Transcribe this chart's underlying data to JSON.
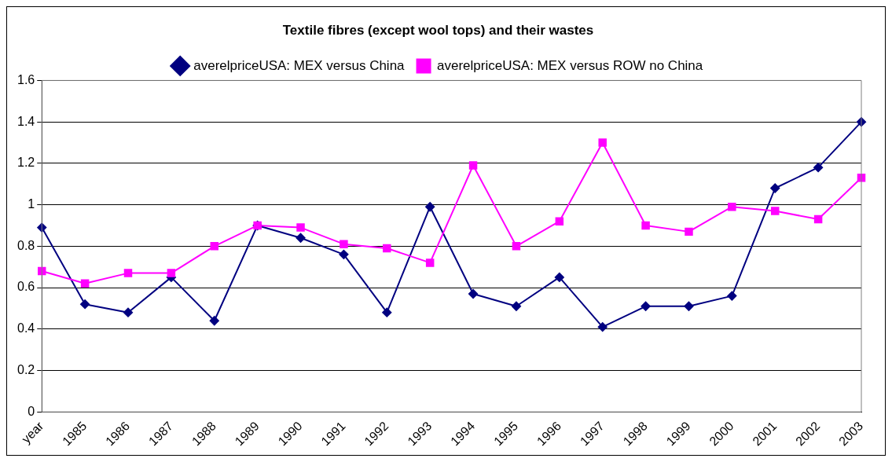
{
  "chart_data": {
    "type": "line",
    "title": "Textile fibres (except wool tops) and their wastes",
    "categories": [
      "year",
      "1985",
      "1986",
      "1987",
      "1988",
      "1989",
      "1990",
      "1991",
      "1992",
      "1993",
      "1994",
      "1995",
      "1996",
      "1997",
      "1998",
      "1999",
      "2000",
      "2001",
      "2002",
      "2003"
    ],
    "series": [
      {
        "name": "averelpriceUSA: MEX versus China",
        "color": "#000080",
        "marker": "diamond",
        "values": [
          0.89,
          0.52,
          0.48,
          0.65,
          0.44,
          0.9,
          0.84,
          0.76,
          0.48,
          0.99,
          0.57,
          0.51,
          0.65,
          0.41,
          0.51,
          0.51,
          0.56,
          1.08,
          1.18,
          1.4
        ]
      },
      {
        "name": "averelpriceUSA: MEX versus ROW no China",
        "color": "#ff00ff",
        "marker": "square",
        "values": [
          0.68,
          0.62,
          0.67,
          0.67,
          0.8,
          0.9,
          0.89,
          0.81,
          0.79,
          0.72,
          1.19,
          0.8,
          0.92,
          1.3,
          0.9,
          0.87,
          0.99,
          0.97,
          0.93,
          1.13
        ]
      }
    ],
    "ylim": [
      0,
      1.6
    ],
    "yticks": [
      0,
      0.2,
      0.4,
      0.6,
      0.8,
      1,
      1.2,
      1.4,
      1.6
    ],
    "grid": "y",
    "legend": "top"
  }
}
